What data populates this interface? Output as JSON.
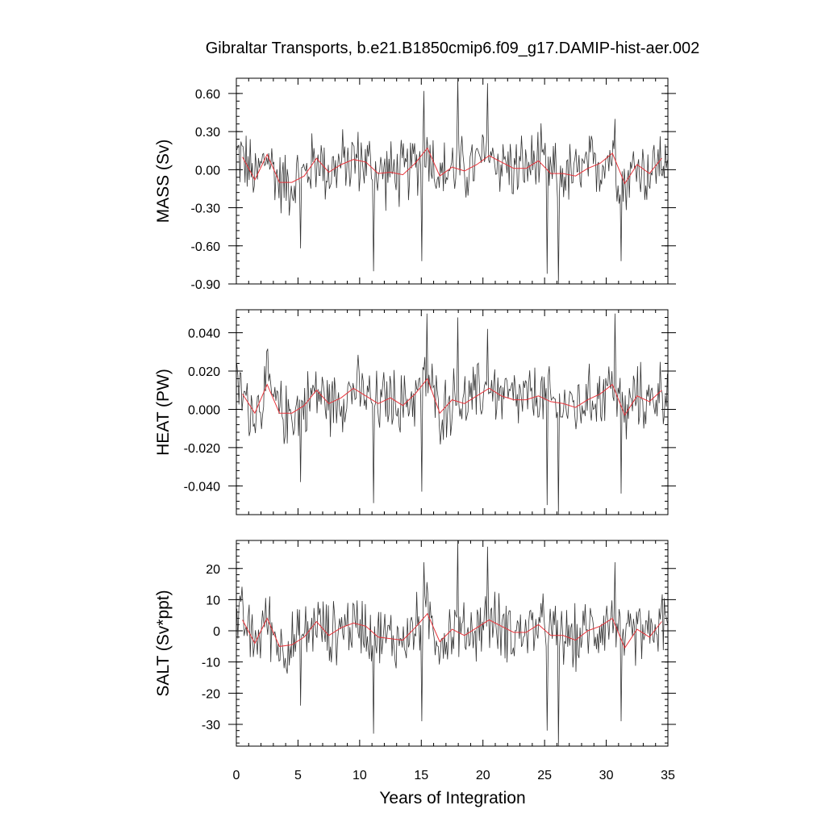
{
  "chart_data": {
    "type": "line",
    "title": "Gibraltar Transports, b.e21.B1850cmip6.f09_g17.DAMIP-hist-aer.002",
    "xlabel": "Years of Integration",
    "xlim": [
      0,
      35
    ],
    "xticks": [
      "0",
      "5",
      "10",
      "15",
      "20",
      "25",
      "30",
      "35"
    ],
    "colors": {
      "monthly": "#333333",
      "annual": "#e8333a"
    },
    "panels": [
      {
        "ylabel": "MASS (Sv)",
        "ylim": [
          -0.9,
          0.72
        ],
        "yticks": [
          "0.60",
          "0.30",
          "0.00",
          "-0.30",
          "-0.60",
          "-0.90"
        ],
        "ytick_values": [
          0.6,
          0.3,
          0.0,
          -0.3,
          -0.6,
          -0.9
        ],
        "annual_x": [
          0.5,
          1.5,
          2.5,
          3.5,
          4.5,
          5.5,
          6.5,
          7.5,
          8.5,
          9.5,
          10.5,
          11.5,
          12.5,
          13.5,
          14.5,
          15.5,
          16.5,
          17.5,
          18.5,
          19.5,
          20.5,
          21.5,
          22.5,
          23.5,
          24.5,
          25.5,
          26.5,
          27.5,
          28.5,
          29.5,
          30.5,
          31.5,
          32.5,
          33.5,
          34.5
        ],
        "annual_y": [
          0.1,
          -0.08,
          0.12,
          -0.1,
          -0.1,
          -0.05,
          0.09,
          -0.02,
          0.04,
          0.08,
          0.06,
          -0.03,
          -0.02,
          -0.04,
          0.05,
          0.17,
          -0.05,
          0.02,
          -0.01,
          0.04,
          0.11,
          0.06,
          0.01,
          0.01,
          0.07,
          -0.03,
          -0.03,
          -0.05,
          0.01,
          0.05,
          0.13,
          -0.11,
          0.04,
          -0.03,
          0.09
        ],
        "monthly_scale": 0.22,
        "spikes": [
          [
            5.2,
            -0.62
          ],
          [
            11.1,
            -0.8
          ],
          [
            15.0,
            -0.72
          ],
          [
            15.2,
            0.62
          ],
          [
            17.9,
            0.75
          ],
          [
            20.3,
            0.68
          ],
          [
            25.2,
            -0.82
          ],
          [
            26.1,
            -0.9
          ],
          [
            31.2,
            -0.72
          ],
          [
            30.7,
            0.4
          ]
        ]
      },
      {
        "ylabel": "HEAT (PW)",
        "ylim": [
          -0.055,
          0.052
        ],
        "yticks": [
          "0.040",
          "0.020",
          "0.000",
          "-0.020",
          "-0.040"
        ],
        "ytick_values": [
          0.04,
          0.02,
          0.0,
          -0.02,
          -0.04
        ],
        "annual_x": [
          0.5,
          1.5,
          2.5,
          3.5,
          4.5,
          5.5,
          6.5,
          7.5,
          8.5,
          9.5,
          10.5,
          11.5,
          12.5,
          13.5,
          14.5,
          15.5,
          16.5,
          17.5,
          18.5,
          19.5,
          20.5,
          21.5,
          22.5,
          23.5,
          24.5,
          25.5,
          26.5,
          27.5,
          28.5,
          29.5,
          30.5,
          31.5,
          32.5,
          33.5,
          34.5
        ],
        "annual_y": [
          0.008,
          -0.002,
          0.013,
          -0.002,
          -0.002,
          0.002,
          0.01,
          0.003,
          0.006,
          0.011,
          0.007,
          0.003,
          0.006,
          0.002,
          0.008,
          0.016,
          -0.002,
          0.005,
          0.003,
          0.007,
          0.011,
          0.007,
          0.005,
          0.005,
          0.007,
          0.004,
          0.003,
          0.001,
          0.005,
          0.008,
          0.013,
          -0.003,
          0.007,
          0.004,
          0.01
        ],
        "monthly_scale": 0.014,
        "spikes": [
          [
            5.2,
            -0.038
          ],
          [
            11.1,
            -0.049
          ],
          [
            15.0,
            -0.043
          ],
          [
            15.4,
            0.05
          ],
          [
            17.9,
            0.048
          ],
          [
            20.3,
            0.042
          ],
          [
            25.2,
            -0.05
          ],
          [
            26.1,
            -0.055
          ],
          [
            31.2,
            -0.044
          ],
          [
            30.7,
            0.05
          ]
        ]
      },
      {
        "ylabel": "SALT (Sv*ppt)",
        "ylim": [
          -37,
          29
        ],
        "yticks": [
          "20",
          "10",
          "0",
          "-10",
          "-20",
          "-30"
        ],
        "ytick_values": [
          20,
          10,
          0,
          -10,
          -20,
          -30
        ],
        "annual_x": [
          0.5,
          1.5,
          2.5,
          3.5,
          4.5,
          5.5,
          6.5,
          7.5,
          8.5,
          9.5,
          10.5,
          11.5,
          12.5,
          13.5,
          14.5,
          15.5,
          16.5,
          17.5,
          18.5,
          19.5,
          20.5,
          21.5,
          22.5,
          23.5,
          24.5,
          25.5,
          26.5,
          27.5,
          28.5,
          29.5,
          30.5,
          31.5,
          32.5,
          33.5,
          34.5
        ],
        "annual_y": [
          3.5,
          -4.0,
          4.0,
          -5.0,
          -4.5,
          -2.0,
          3.0,
          -1.5,
          1.0,
          2.5,
          1.5,
          -2.0,
          -2.5,
          -3.0,
          1.0,
          5.5,
          -3.5,
          0.5,
          -1.5,
          1.0,
          3.5,
          1.5,
          -0.5,
          -0.5,
          2.0,
          -1.5,
          -1.5,
          -3.0,
          0.0,
          1.5,
          4.0,
          -5.5,
          0.5,
          -2.0,
          3.0
        ],
        "monthly_scale": 8.5,
        "spikes": [
          [
            5.2,
            -24
          ],
          [
            11.1,
            -33
          ],
          [
            15.0,
            -29
          ],
          [
            15.2,
            22
          ],
          [
            17.9,
            29
          ],
          [
            20.3,
            27
          ],
          [
            25.2,
            -32
          ],
          [
            26.1,
            -37
          ],
          [
            31.2,
            -29
          ],
          [
            30.7,
            22
          ]
        ]
      }
    ]
  }
}
